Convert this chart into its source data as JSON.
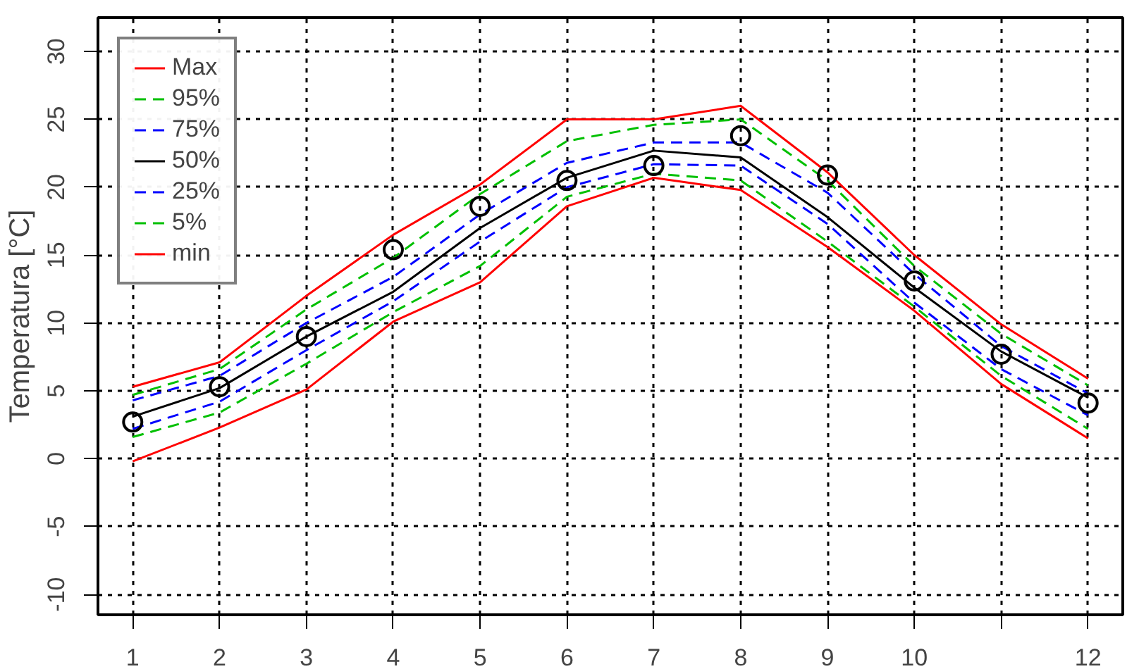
{
  "chart_data": {
    "type": "line",
    "ylabel": "Temperatura [°C]",
    "x": [
      1,
      2,
      3,
      4,
      5,
      6,
      7,
      8,
      9,
      10,
      11,
      12
    ],
    "xlim": [
      0.6,
      12.4
    ],
    "ylim": [
      -11.5,
      32.5
    ],
    "xticks": [
      1,
      2,
      3,
      4,
      5,
      6,
      7,
      8,
      9,
      10,
      {
        "value": 11,
        "label": null
      },
      12
    ],
    "yticks": [
      -10,
      -5,
      0,
      5,
      10,
      15,
      20,
      25,
      30
    ],
    "grid": true,
    "legend": "top left",
    "series": [
      {
        "name": "Max",
        "color": "#ff0000",
        "line_style": "solid",
        "values": [
          5.3,
          7.1,
          12,
          16.5,
          20.2,
          25,
          25,
          26,
          21.1,
          15,
          9.9,
          5.9
        ]
      },
      {
        "name": "95%",
        "color": "#00c000",
        "line_style": "dashed",
        "values": [
          4.7,
          6.6,
          11,
          14.8,
          19.5,
          23.4,
          24.6,
          25,
          20.5,
          14.2,
          9.2,
          5.4
        ]
      },
      {
        "name": "75%",
        "color": "#0000ff",
        "line_style": "dashed",
        "values": [
          4.3,
          6.1,
          10,
          13.4,
          18,
          21.8,
          23.3,
          23.3,
          19.6,
          13.6,
          8.3,
          4.8
        ]
      },
      {
        "name": "50%",
        "color": "#000000",
        "line_style": "solid",
        "values": [
          3.1,
          5.2,
          9,
          12.3,
          17,
          20.7,
          22.7,
          22.2,
          17.8,
          12.6,
          7.9,
          4.5
        ]
      },
      {
        "name": "25%",
        "color": "#0000ff",
        "line_style": "dashed",
        "values": [
          2.2,
          4.2,
          8,
          11.6,
          16,
          20,
          21.7,
          21.6,
          17.3,
          11.5,
          6.6,
          3.2
        ]
      },
      {
        "name": "5%",
        "color": "#00c000",
        "line_style": "dashed",
        "values": [
          1.6,
          3.4,
          7,
          10.8,
          14.2,
          19.3,
          21,
          20.5,
          16,
          11.2,
          6.1,
          2.2
        ]
      },
      {
        "name": "min",
        "color": "#ff0000",
        "line_style": "solid",
        "values": [
          -0.2,
          2.3,
          5.1,
          10.1,
          13,
          18.6,
          20.7,
          19.8,
          15.6,
          10.9,
          5.5,
          1.5
        ]
      },
      {
        "type": "scatter",
        "marker": "circle",
        "color": "#000000",
        "values": [
          2.7,
          5.3,
          9,
          15.4,
          18.6,
          20.5,
          21.6,
          23.8,
          20.9,
          13.1,
          7.7,
          4.1
        ]
      }
    ]
  }
}
